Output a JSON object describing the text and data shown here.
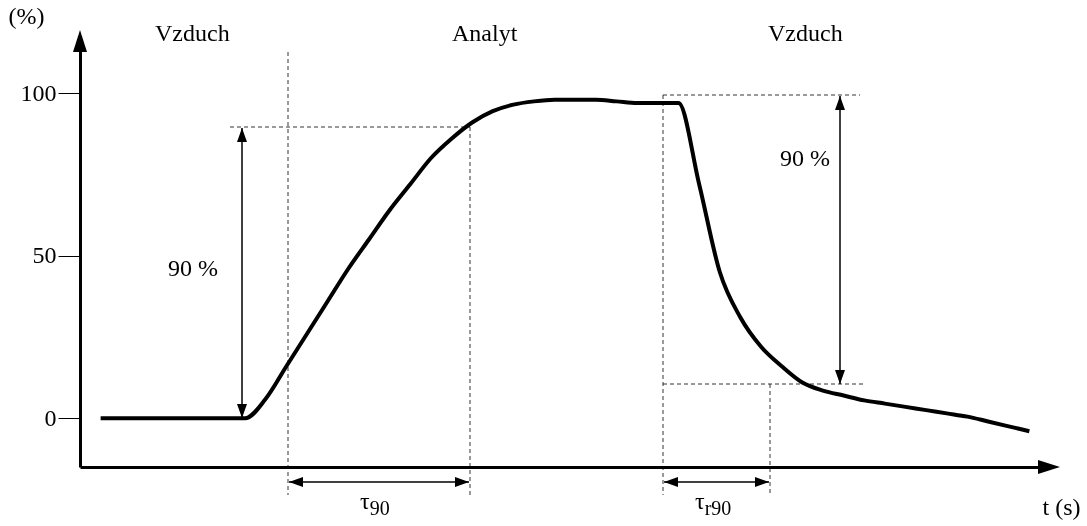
{
  "chart_data": {
    "type": "line",
    "xlabel": "t (s)",
    "ylabel": "(%)",
    "categories": [
      null,
      null,
      null,
      null,
      null,
      null,
      null,
      null,
      null,
      null,
      null,
      null,
      null,
      null,
      null,
      null,
      null,
      null,
      null,
      null,
      null,
      null,
      null,
      null,
      null,
      null,
      null,
      null,
      null,
      null,
      null,
      null,
      null,
      null,
      null,
      null,
      null,
      null,
      null,
      null,
      null,
      null,
      null,
      null,
      null,
      null
    ],
    "series": [
      {
        "color": "#000000",
        "values": [
          0,
          0,
          0,
          0,
          0,
          0,
          0,
          0,
          6,
          16,
          26,
          36,
          46,
          55,
          64,
          72,
          80,
          86,
          91,
          94.5,
          96.5,
          97.5,
          98,
          98,
          98,
          97.5,
          97,
          97,
          97,
          72,
          45,
          31,
          22,
          16,
          11,
          8.5,
          7,
          5.5,
          4.5,
          3.5,
          2.5,
          1.5,
          0.5,
          -1,
          -2.5,
          -4
        ]
      }
    ],
    "ylim": [
      -15,
      117
    ],
    "yticks": [
      0,
      50,
      100
    ],
    "grid": false,
    "tick_labels": "y",
    "marker": "none",
    "line_style": "solid",
    "annotations": [
      "Vzduch",
      "Analyt",
      "Vzduch",
      "90 %",
      "90 %",
      "τ$_{90}$",
      "τ$_{r90}$"
    ]
  }
}
